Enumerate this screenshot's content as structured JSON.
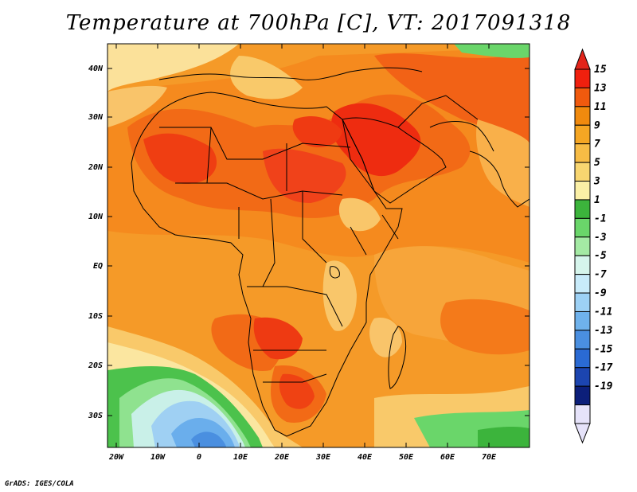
{
  "title": "Temperature at 700hPa [C], VT: 2017091318",
  "footer": "GrADS: IGES/COLA",
  "lat_labels": [
    "40N",
    "30N",
    "20N",
    "10N",
    "EQ",
    "10S",
    "20S",
    "30S"
  ],
  "lon_labels": [
    "20W",
    "10W",
    "0",
    "10E",
    "20E",
    "30E",
    "40E",
    "50E",
    "60E",
    "70E"
  ],
  "colorbar": {
    "labels": [
      "15",
      "13",
      "11",
      "9",
      "7",
      "5",
      "3",
      "1",
      "-1",
      "-3",
      "-5",
      "-7",
      "-9",
      "-11",
      "-13",
      "-15",
      "-17",
      "-19"
    ],
    "colors": [
      "#f0200e",
      "#f05a0e",
      "#f08a0e",
      "#f5a623",
      "#f7bc45",
      "#f8d670",
      "#fbf0a6",
      "#3cb43c",
      "#6ad66a",
      "#a4eaa4",
      "#d6f5ec",
      "#c8ebfa",
      "#9dd1f5",
      "#6fb2ec",
      "#4a8fe0",
      "#2a6ad3",
      "#1c45b0",
      "#0c1f7a",
      "#e6e3fa"
    ],
    "top_arrow_color": "#e2241a",
    "bottom_arrow_color": "#e6e3fa"
  },
  "palette": {
    "hot": "#f0220e",
    "warm": "#f36d16",
    "orange": "#f58d20",
    "lightorange": "#f9a938",
    "yellow": "#f9c96a",
    "paleyellow": "#fbe7a0",
    "green": "#4cc24c",
    "lightgreen": "#a4eaa4",
    "cyan": "#d9f5ef",
    "lightblue": "#9fd0f3",
    "blue": "#6aaeec",
    "darkblue": "#4a8fe0"
  }
}
